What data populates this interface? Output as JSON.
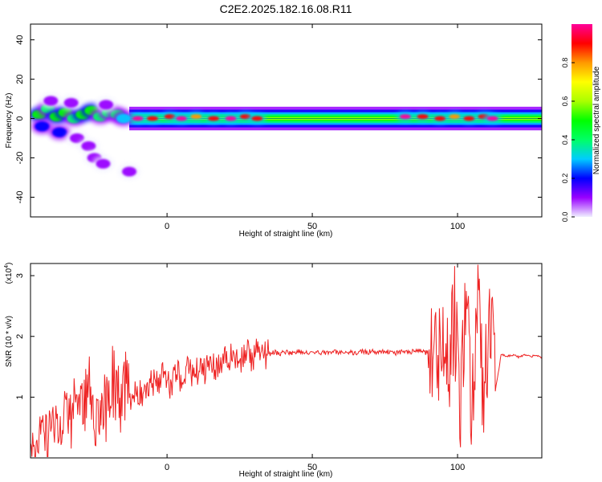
{
  "title": "C2E2.2025.182.16.08.R11",
  "chart_data": [
    {
      "type": "heatmap",
      "xlabel": "Height of straight line (km)",
      "ylabel": "Frequency (Hz)",
      "xlim": [
        -47,
        129
      ],
      "ylim": [
        -50,
        48
      ],
      "x_ticks": [
        "0",
        "50",
        "100"
      ],
      "x_tick_values": [
        0,
        50,
        100
      ],
      "y_ticks": [
        "40",
        "20",
        "0",
        "-20",
        "-40"
      ],
      "y_tick_values": [
        40,
        20,
        0,
        -20,
        -40
      ],
      "colorbar": {
        "label": "Normalized spectral amplitude",
        "ticks": [
          "0.0",
          "0.2",
          "0.4",
          "0.6",
          "0.8"
        ],
        "tick_values": [
          0.0,
          0.2,
          0.4,
          0.6,
          0.8
        ],
        "range": [
          0,
          1
        ],
        "colors": [
          "#f0f0ff",
          "#9900ff",
          "#0000ff",
          "#00ccff",
          "#00ff66",
          "#00ff00",
          "#aaff00",
          "#ffff00",
          "#ff9900",
          "#ff0000",
          "#ff0099"
        ]
      },
      "blobs": [
        {
          "x": -44,
          "y": 2,
          "v": 0.5
        },
        {
          "x": -41,
          "y": 5,
          "v": 0.42
        },
        {
          "x": -38,
          "y": 1,
          "v": 0.45
        },
        {
          "x": -35,
          "y": 3,
          "v": 0.48
        },
        {
          "x": -32,
          "y": 0,
          "v": 0.4
        },
        {
          "x": -29,
          "y": 2,
          "v": 0.5
        },
        {
          "x": -26,
          "y": 4,
          "v": 0.45
        },
        {
          "x": -23,
          "y": 1,
          "v": 0.42
        },
        {
          "x": -20,
          "y": 3,
          "v": 0.4
        },
        {
          "x": -17,
          "y": 2,
          "v": 0.38
        },
        {
          "x": -15,
          "y": 0,
          "v": 0.3
        },
        {
          "x": -43,
          "y": -4,
          "v": 0.18
        },
        {
          "x": -37,
          "y": -7,
          "v": 0.15
        },
        {
          "x": -31,
          "y": -10,
          "v": 0.12
        },
        {
          "x": -27,
          "y": -14,
          "v": 0.1
        },
        {
          "x": -25,
          "y": -20,
          "v": 0.08
        },
        {
          "x": -22,
          "y": -23,
          "v": 0.07
        },
        {
          "x": -40,
          "y": 9,
          "v": 0.12
        },
        {
          "x": -33,
          "y": 8,
          "v": 0.1
        },
        {
          "x": -21,
          "y": 7,
          "v": 0.1
        },
        {
          "x": -13,
          "y": -27,
          "v": 0.05
        },
        {
          "x": -10,
          "y": 0,
          "v": 0.95
        },
        {
          "x": -5,
          "y": 0,
          "v": 0.9
        },
        {
          "x": 1,
          "y": 1,
          "v": 0.85
        },
        {
          "x": 5,
          "y": 0,
          "v": 0.95
        },
        {
          "x": 10,
          "y": 1,
          "v": 0.8
        },
        {
          "x": 16,
          "y": 0,
          "v": 0.9
        },
        {
          "x": 22,
          "y": 0,
          "v": 0.95
        },
        {
          "x": 27,
          "y": 1,
          "v": 0.85
        },
        {
          "x": 31,
          "y": 0,
          "v": 0.9
        },
        {
          "x": 82,
          "y": 1,
          "v": 0.95
        },
        {
          "x": 88,
          "y": 1,
          "v": 0.9
        },
        {
          "x": 94,
          "y": 0,
          "v": 0.85
        },
        {
          "x": 99,
          "y": 1,
          "v": 0.8
        },
        {
          "x": 104,
          "y": 0,
          "v": 0.9
        },
        {
          "x": 109,
          "y": 1,
          "v": 0.85
        },
        {
          "x": 112,
          "y": 0,
          "v": 0.95
        }
      ],
      "band": {
        "x_start": -13,
        "x_end": 129,
        "center": 0,
        "value": 0.5
      }
    },
    {
      "type": "line",
      "xlabel": "Height of straight line (km)",
      "ylabel": "SNR (10 * v/v)",
      "y_multiplier": "(x10",
      "y_multiplier_exp": "4",
      "y_multiplier_close": ")",
      "xlim": [
        -47,
        129
      ],
      "ylim": [
        0,
        3.2
      ],
      "x_ticks": [
        "0",
        "50",
        "100"
      ],
      "x_tick_values": [
        0,
        50,
        100
      ],
      "y_ticks": [
        "1",
        "2",
        "3"
      ],
      "y_tick_values": [
        1,
        2,
        3
      ],
      "series": [
        {
          "color": "#ee2222",
          "x": [
            -47,
            -45,
            -43,
            -41,
            -39,
            -37,
            -35,
            -33,
            -31,
            -29,
            -27,
            -25,
            -23,
            -21,
            -19,
            -17,
            -15,
            -13,
            -11,
            -9,
            -7,
            -5,
            -3,
            -1,
            1,
            3,
            5,
            7,
            9,
            11,
            13,
            15,
            17,
            19,
            21,
            23,
            25,
            27,
            29,
            31,
            33,
            35,
            37,
            39,
            41,
            43,
            45,
            47,
            49,
            51,
            53,
            55,
            57,
            59,
            61,
            63,
            65,
            67,
            69,
            71,
            73,
            75,
            77,
            79,
            81,
            83,
            85,
            87,
            89,
            91,
            93,
            95,
            97,
            99,
            101,
            103,
            105,
            107,
            109,
            111,
            113,
            115,
            117,
            119,
            121,
            123,
            125,
            127,
            129
          ],
          "y": [
            0.25,
            0.2,
            0.45,
            0.3,
            0.7,
            0.5,
            0.9,
            0.6,
            1.1,
            0.8,
            1.2,
            0.7,
            1.0,
            0.85,
            1.3,
            0.9,
            1.1,
            1.0,
            1.15,
            1.05,
            1.2,
            1.25,
            1.3,
            1.35,
            1.2,
            1.4,
            1.3,
            1.5,
            1.35,
            1.45,
            1.4,
            1.55,
            1.5,
            1.65,
            1.6,
            1.7,
            1.55,
            1.8,
            1.65,
            1.75,
            1.72,
            1.7,
            1.74,
            1.72,
            1.75,
            1.73,
            1.76,
            1.74,
            1.72,
            1.75,
            1.73,
            1.74,
            1.76,
            1.72,
            1.75,
            1.74,
            1.73,
            1.75,
            1.74,
            1.76,
            1.73,
            1.75,
            1.74,
            1.72,
            1.76,
            1.74,
            1.75,
            1.77,
            1.73,
            1.85,
            1.6,
            2.1,
            1.4,
            2.3,
            0.9,
            2.8,
            0.5,
            3.1,
            0.6,
            2.5,
            1.1,
            1.7,
            1.68,
            1.7,
            1.66,
            1.69,
            1.67,
            1.68,
            1.66
          ]
        }
      ]
    }
  ]
}
